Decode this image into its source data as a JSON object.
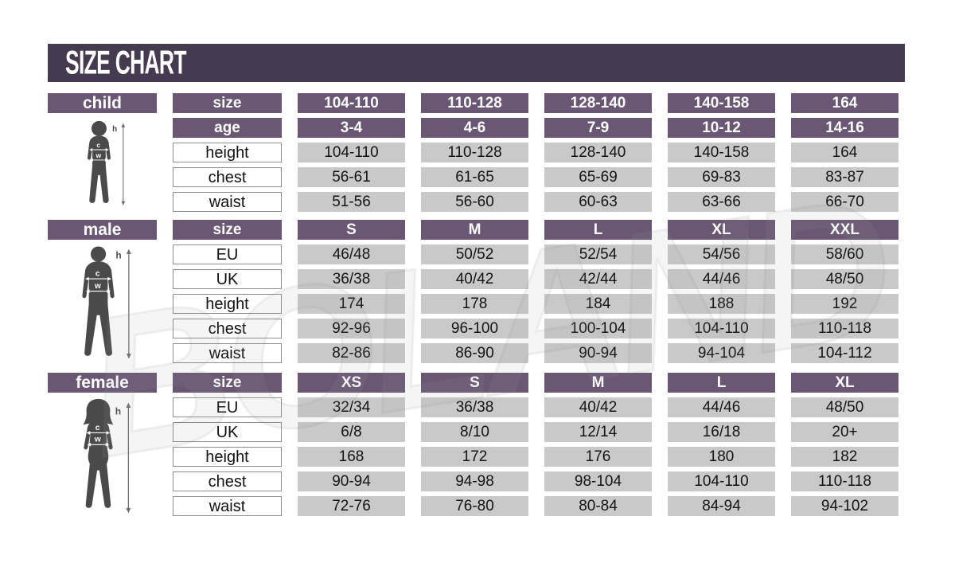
{
  "title": "SIZE CHART",
  "watermark": "BOLAND",
  "colors": {
    "title_bar": "#453a50",
    "header_cell": "#6a5774",
    "data_cell": "#c9c9c9",
    "label_cell_border": "#8e8e8e",
    "figure_silhouette": "#4a4a4a"
  },
  "figure_markers": {
    "height": "h",
    "chest": "c",
    "waist": "w"
  },
  "sections": [
    {
      "group": "child",
      "figure_icon": "child-figure-icon",
      "header_rows": [
        {
          "label": "size",
          "values": [
            "104-110",
            "110-128",
            "128-140",
            "140-158",
            "164"
          ]
        },
        {
          "label": "age",
          "values": [
            "3-4",
            "4-6",
            "7-9",
            "10-12",
            "14-16"
          ]
        }
      ],
      "data_rows": [
        {
          "label": "height",
          "values": [
            "104-110",
            "110-128",
            "128-140",
            "140-158",
            "164"
          ]
        },
        {
          "label": "chest",
          "values": [
            "56-61",
            "61-65",
            "65-69",
            "69-83",
            "83-87"
          ]
        },
        {
          "label": "waist",
          "values": [
            "51-56",
            "56-60",
            "60-63",
            "63-66",
            "66-70"
          ]
        }
      ]
    },
    {
      "group": "male",
      "figure_icon": "male-figure-icon",
      "header_rows": [
        {
          "label": "size",
          "values": [
            "S",
            "M",
            "L",
            "XL",
            "XXL"
          ]
        }
      ],
      "data_rows": [
        {
          "label": "EU",
          "values": [
            "46/48",
            "50/52",
            "52/54",
            "54/56",
            "58/60"
          ]
        },
        {
          "label": "UK",
          "values": [
            "36/38",
            "40/42",
            "42/44",
            "44/46",
            "48/50"
          ]
        },
        {
          "label": "height",
          "values": [
            "174",
            "178",
            "184",
            "188",
            "192"
          ]
        },
        {
          "label": "chest",
          "values": [
            "92-96",
            "96-100",
            "100-104",
            "104-110",
            "110-118"
          ]
        },
        {
          "label": "waist",
          "values": [
            "82-86",
            "86-90",
            "90-94",
            "94-104",
            "104-112"
          ]
        }
      ]
    },
    {
      "group": "female",
      "figure_icon": "female-figure-icon",
      "header_rows": [
        {
          "label": "size",
          "values": [
            "XS",
            "S",
            "M",
            "L",
            "XL"
          ]
        }
      ],
      "data_rows": [
        {
          "label": "EU",
          "values": [
            "32/34",
            "36/38",
            "40/42",
            "44/46",
            "48/50"
          ]
        },
        {
          "label": "UK",
          "values": [
            "6/8",
            "8/10",
            "12/14",
            "16/18",
            "20+"
          ]
        },
        {
          "label": "height",
          "values": [
            "168",
            "172",
            "176",
            "180",
            "182"
          ]
        },
        {
          "label": "chest",
          "values": [
            "90-94",
            "94-98",
            "98-104",
            "104-110",
            "110-118"
          ]
        },
        {
          "label": "waist",
          "values": [
            "72-76",
            "76-80",
            "80-84",
            "84-94",
            "94-102"
          ]
        }
      ]
    }
  ],
  "chart_data": [
    {
      "type": "table",
      "title": "SIZE CHART - child",
      "columns": [
        "size",
        "104-110",
        "110-128",
        "128-140",
        "140-158",
        "164"
      ],
      "rows": [
        [
          "age",
          "3-4",
          "4-6",
          "7-9",
          "10-12",
          "14-16"
        ],
        [
          "height",
          "104-110",
          "110-128",
          "128-140",
          "140-158",
          "164"
        ],
        [
          "chest",
          "56-61",
          "61-65",
          "65-69",
          "69-83",
          "83-87"
        ],
        [
          "waist",
          "51-56",
          "56-60",
          "60-63",
          "63-66",
          "66-70"
        ]
      ]
    },
    {
      "type": "table",
      "title": "SIZE CHART - male",
      "columns": [
        "size",
        "S",
        "M",
        "L",
        "XL",
        "XXL"
      ],
      "rows": [
        [
          "EU",
          "46/48",
          "50/52",
          "52/54",
          "54/56",
          "58/60"
        ],
        [
          "UK",
          "36/38",
          "40/42",
          "42/44",
          "44/46",
          "48/50"
        ],
        [
          "height",
          "174",
          "178",
          "184",
          "188",
          "192"
        ],
        [
          "chest",
          "92-96",
          "96-100",
          "100-104",
          "104-110",
          "110-118"
        ],
        [
          "waist",
          "82-86",
          "86-90",
          "90-94",
          "94-104",
          "104-112"
        ]
      ]
    },
    {
      "type": "table",
      "title": "SIZE CHART - female",
      "columns": [
        "size",
        "XS",
        "S",
        "M",
        "L",
        "XL"
      ],
      "rows": [
        [
          "EU",
          "32/34",
          "36/38",
          "40/42",
          "44/46",
          "48/50"
        ],
        [
          "UK",
          "6/8",
          "8/10",
          "12/14",
          "16/18",
          "20+"
        ],
        [
          "height",
          "168",
          "172",
          "176",
          "180",
          "182"
        ],
        [
          "chest",
          "90-94",
          "94-98",
          "98-104",
          "104-110",
          "110-118"
        ],
        [
          "waist",
          "72-76",
          "76-80",
          "80-84",
          "84-94",
          "94-102"
        ]
      ]
    }
  ]
}
